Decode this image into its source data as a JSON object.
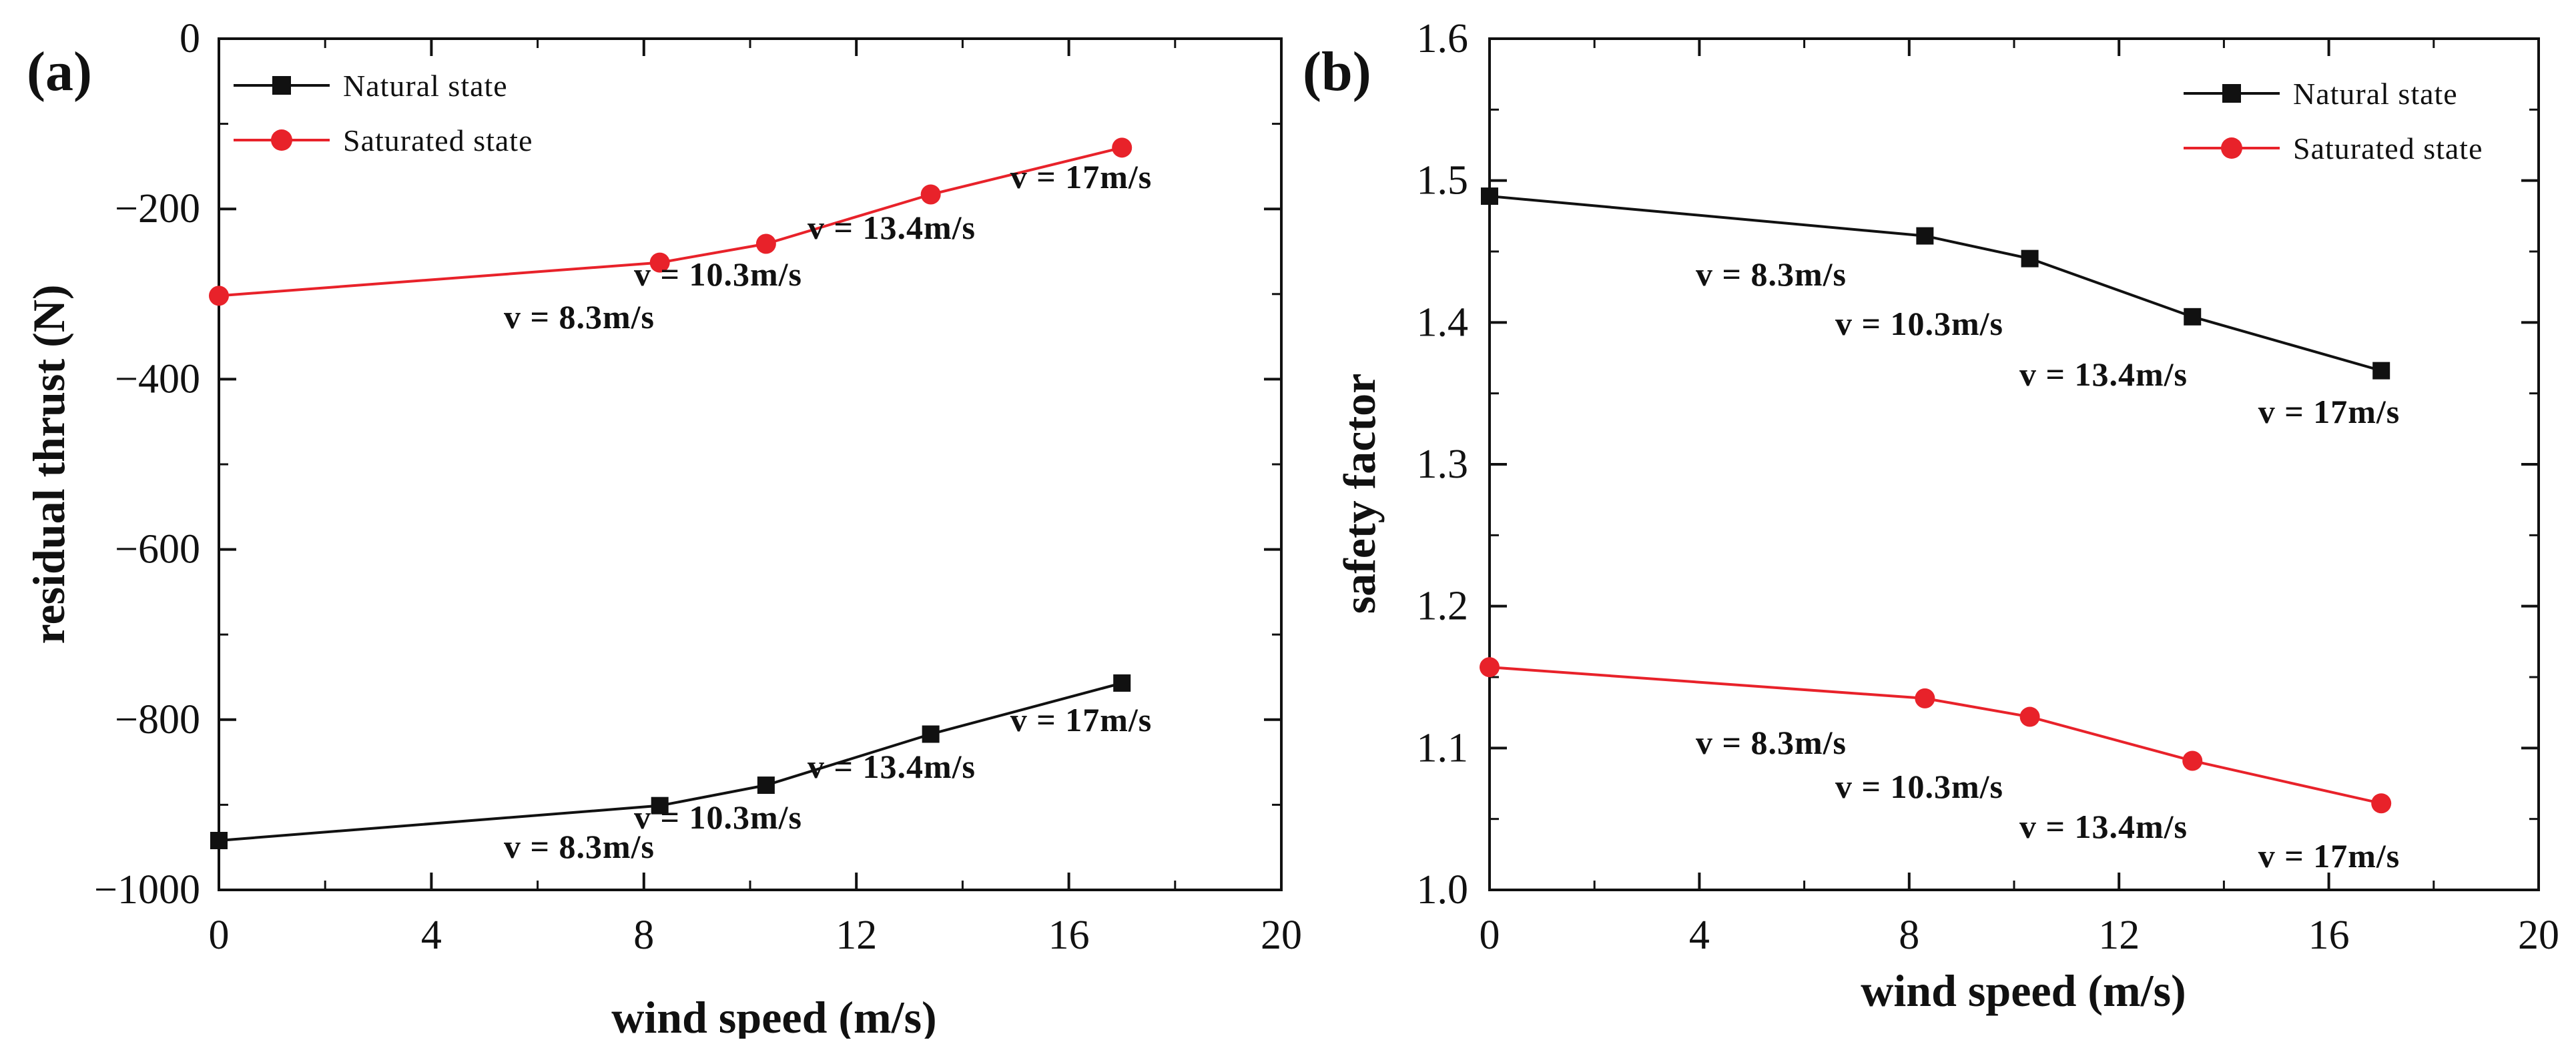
{
  "chart_data": [
    {
      "type": "line",
      "panel_label": "(a)",
      "title": "",
      "xlabel": "wind speed (m/s)",
      "ylabel": "residual thrust (N)",
      "xlim": [
        0,
        20
      ],
      "ylim": [
        -1000,
        0
      ],
      "xticks": [
        0,
        4,
        8,
        12,
        16,
        20
      ],
      "yticks": [
        0,
        -200,
        -400,
        -600,
        -800,
        -1000
      ],
      "ytick_labels": [
        "0",
        "−200",
        "−400",
        "−600",
        "−800",
        "−1000"
      ],
      "legend_position": "top-left",
      "series": [
        {
          "name": "Natural state",
          "color": "#111111",
          "marker": "square",
          "x": [
            0,
            8.3,
            10.3,
            13.4,
            17
          ],
          "y": [
            -942,
            -901,
            -877,
            -817,
            -757
          ],
          "annotations": [
            "v = 8.3m/s",
            "v = 10.3m/s",
            "v = 13.4m/s",
            "v = 17m/s"
          ]
        },
        {
          "name": "Saturated state",
          "color": "#e8222a",
          "marker": "circle",
          "x": [
            0,
            8.3,
            10.3,
            13.4,
            17
          ],
          "y": [
            -302,
            -263,
            -241,
            -183,
            -128
          ],
          "annotations": [
            "v = 8.3m/s",
            "v = 10.3m/s",
            "v = 13.4m/s",
            "v = 17m/s"
          ]
        }
      ]
    },
    {
      "type": "line",
      "panel_label": "(b)",
      "title": "",
      "xlabel": "wind speed (m/s)",
      "ylabel": "safety factor",
      "xlim": [
        0,
        20
      ],
      "ylim": [
        1.0,
        1.6
      ],
      "xticks": [
        0,
        4,
        8,
        12,
        16,
        20
      ],
      "yticks": [
        1.0,
        1.1,
        1.2,
        1.3,
        1.4,
        1.5,
        1.6
      ],
      "ytick_labels": [
        "1.0",
        "1.1",
        "1.2",
        "1.3",
        "1.4",
        "1.5",
        "1.6"
      ],
      "legend_position": "top-right",
      "series": [
        {
          "name": "Natural state",
          "color": "#111111",
          "marker": "square",
          "x": [
            0,
            8.3,
            10.3,
            13.4,
            17
          ],
          "y": [
            1.489,
            1.461,
            1.445,
            1.404,
            1.366
          ],
          "annotations": [
            "v = 8.3m/s",
            "v = 10.3m/s",
            "v = 13.4m/s",
            "v = 17m/s"
          ]
        },
        {
          "name": "Saturated state",
          "color": "#e8222a",
          "marker": "circle",
          "x": [
            0,
            8.3,
            10.3,
            13.4,
            17
          ],
          "y": [
            1.157,
            1.135,
            1.122,
            1.091,
            1.061
          ],
          "annotations": [
            "v = 8.3m/s",
            "v = 10.3m/s",
            "v = 13.4m/s",
            "v = 17m/s"
          ]
        }
      ]
    }
  ]
}
